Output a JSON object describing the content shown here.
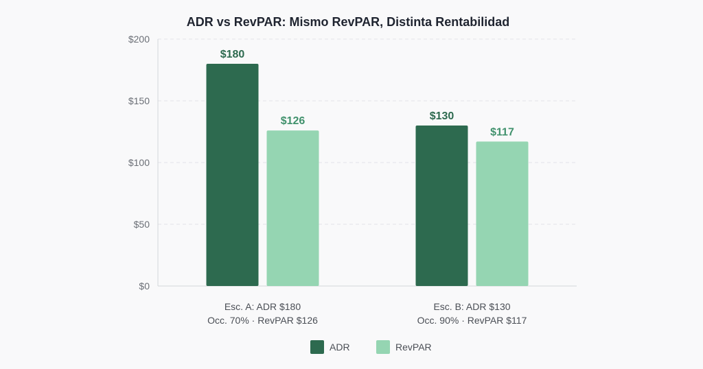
{
  "chart_data": {
    "type": "bar",
    "title": "ADR vs RevPAR: Mismo RevPAR, Distinta Rentabilidad",
    "categories": [
      [
        "Esc. A: ADR $180",
        "Occ. 70% · RevPAR $126"
      ],
      [
        "Esc. B: ADR $130",
        "Occ. 90% · RevPAR $117"
      ]
    ],
    "series": [
      {
        "name": "ADR",
        "color": "#2d6a4f",
        "label_color": "#2d6a4f",
        "values": [
          180,
          130
        ],
        "labels": [
          "$180",
          "$130"
        ]
      },
      {
        "name": "RevPAR",
        "color": "#95d5b2",
        "label_color": "#40916c",
        "values": [
          126,
          117
        ],
        "labels": [
          "$126",
          "$117"
        ]
      }
    ],
    "ylim": [
      0,
      200
    ],
    "yticks": [
      0,
      50,
      100,
      150,
      200
    ],
    "ytick_labels": [
      "$0",
      "$50",
      "$100",
      "$150",
      "$200"
    ],
    "grid": true,
    "legend_position": "bottom"
  }
}
